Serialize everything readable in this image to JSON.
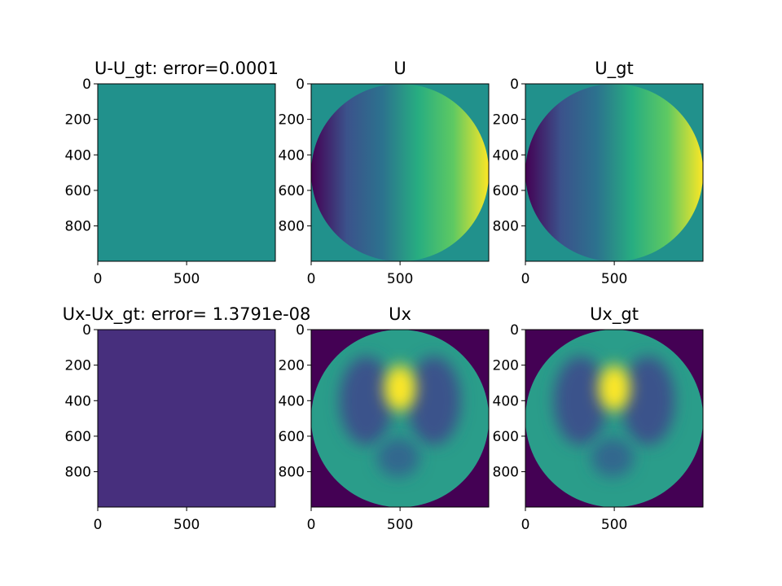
{
  "figure": {
    "background": "#ffffff"
  },
  "colormap": {
    "name": "viridis",
    "stops": [
      "#440154",
      "#3b528b",
      "#21918c",
      "#5ec962",
      "#fde725"
    ]
  },
  "chart_data": [
    {
      "type": "heatmap",
      "title": "U-U_gt: error=0.0001",
      "xticks": [
        0,
        500
      ],
      "yticks": [
        0,
        200,
        400,
        600,
        800
      ],
      "xlim": [
        0,
        999
      ],
      "ylim": [
        999,
        0
      ],
      "field": "uniform",
      "background": "#21918c",
      "fill": "#21918c"
    },
    {
      "type": "heatmap",
      "title": "U",
      "xticks": [
        0,
        500
      ],
      "yticks": [
        0,
        200,
        400,
        600,
        800
      ],
      "xlim": [
        0,
        999
      ],
      "ylim": [
        999,
        0
      ],
      "field": "horizontal-gradient-disk",
      "background": "#21918c",
      "gradient": [
        "#440154",
        "#3b528b",
        "#2c728e",
        "#27ad81",
        "#5ec962",
        "#fde725"
      ]
    },
    {
      "type": "heatmap",
      "title": "U_gt",
      "xticks": [
        0,
        500
      ],
      "yticks": [
        0,
        200,
        400,
        600,
        800
      ],
      "xlim": [
        0,
        999
      ],
      "ylim": [
        999,
        0
      ],
      "field": "horizontal-gradient-disk",
      "background": "#21918c",
      "gradient": [
        "#440154",
        "#3b528b",
        "#2c728e",
        "#27ad81",
        "#5ec962",
        "#fde725"
      ]
    },
    {
      "type": "heatmap",
      "title": "Ux-Ux_gt: error= 1.3791e-08",
      "xticks": [
        0,
        500
      ],
      "yticks": [
        0,
        200,
        400,
        600,
        800
      ],
      "xlim": [
        0,
        999
      ],
      "ylim": [
        999,
        0
      ],
      "field": "uniform",
      "background": "#472f7d",
      "fill": "#472f7d"
    },
    {
      "type": "heatmap",
      "title": "Ux",
      "xticks": [
        0,
        500
      ],
      "yticks": [
        0,
        200,
        400,
        600,
        800
      ],
      "xlim": [
        0,
        999
      ],
      "ylim": [
        999,
        0
      ],
      "field": "blob-disk",
      "background": "#440154",
      "disk_fill": "#2a9d8a",
      "blobs": [
        {
          "cx": 310,
          "cy": 400,
          "rx": 150,
          "ry": 250,
          "color": "#3b528b"
        },
        {
          "cx": 690,
          "cy": 400,
          "rx": 150,
          "ry": 250,
          "color": "#3b528b"
        },
        {
          "cx": 490,
          "cy": 720,
          "rx": 120,
          "ry": 110,
          "color": "#31688e"
        },
        {
          "cx": 500,
          "cy": 330,
          "rx": 90,
          "ry": 130,
          "color": "#fde725"
        }
      ]
    },
    {
      "type": "heatmap",
      "title": "Ux_gt",
      "xticks": [
        0,
        500
      ],
      "yticks": [
        0,
        200,
        400,
        600,
        800
      ],
      "xlim": [
        0,
        999
      ],
      "ylim": [
        999,
        0
      ],
      "field": "blob-disk",
      "background": "#440154",
      "disk_fill": "#2a9d8a",
      "blobs": [
        {
          "cx": 310,
          "cy": 400,
          "rx": 150,
          "ry": 250,
          "color": "#3b528b"
        },
        {
          "cx": 690,
          "cy": 400,
          "rx": 150,
          "ry": 250,
          "color": "#3b528b"
        },
        {
          "cx": 490,
          "cy": 720,
          "rx": 120,
          "ry": 110,
          "color": "#31688e"
        },
        {
          "cx": 500,
          "cy": 330,
          "rx": 90,
          "ry": 130,
          "color": "#fde725"
        }
      ]
    }
  ]
}
